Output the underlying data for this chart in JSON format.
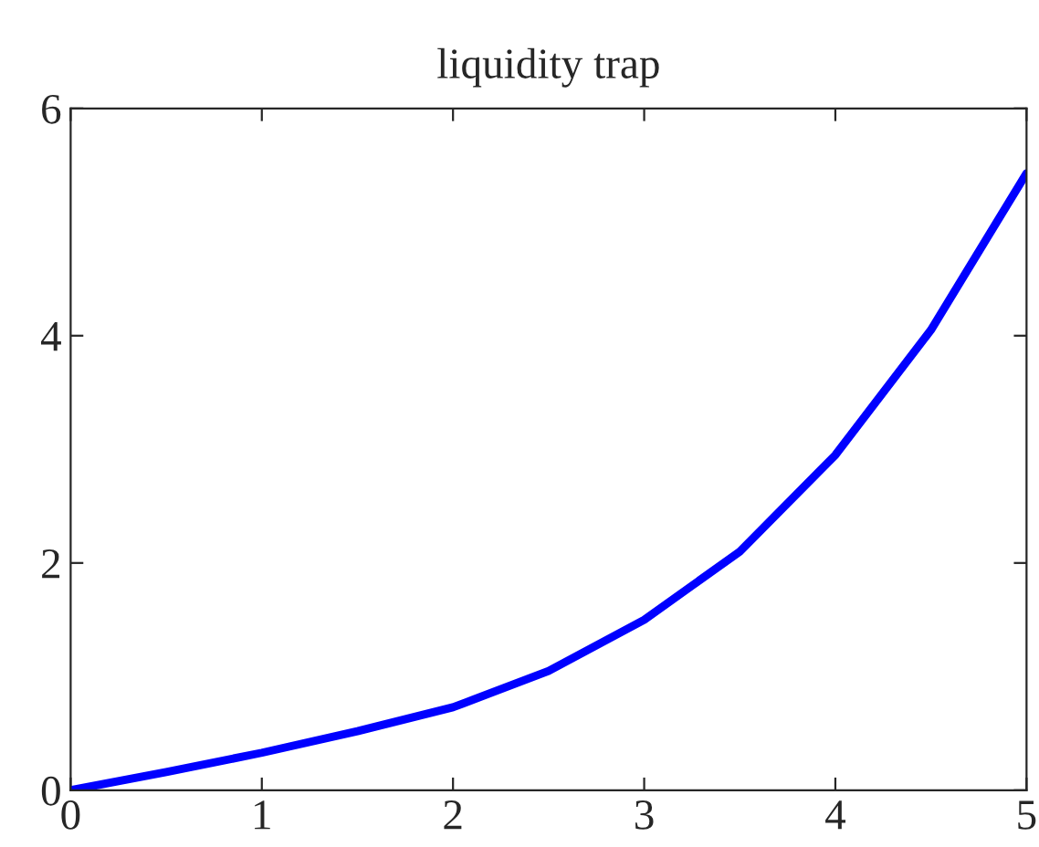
{
  "chart_data": {
    "type": "line",
    "title": "liquidity trap",
    "x": [
      0,
      0.5,
      1,
      1.5,
      2,
      2.5,
      3,
      3.5,
      4,
      4.5,
      5
    ],
    "series": [
      {
        "color": "#0000ff",
        "values": [
          0,
          0.16,
          0.33,
          0.52,
          0.73,
          1.05,
          1.5,
          2.1,
          2.95,
          4.05,
          5.43
        ]
      }
    ],
    "xlim": [
      0,
      5
    ],
    "ylim": [
      0,
      6
    ],
    "xticks": [
      0,
      1,
      2,
      3,
      4,
      5
    ],
    "yticks": [
      0,
      2,
      4,
      6
    ],
    "grid": false,
    "legend": false,
    "marker": "none",
    "line_style": "solid"
  }
}
